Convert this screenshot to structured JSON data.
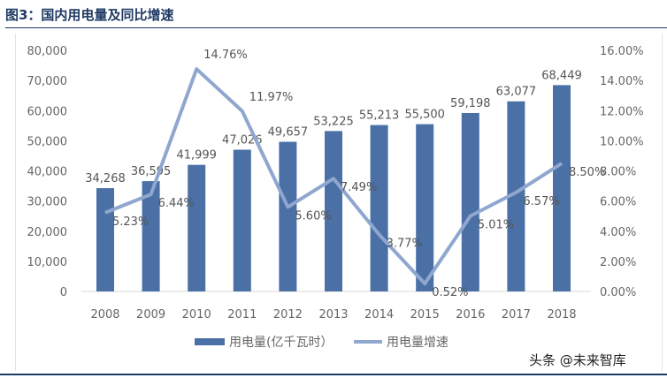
{
  "title": "图3：国内用电量及同比增速",
  "watermark": "头条 @未来智库",
  "chart_data": {
    "type": "bar+line",
    "title": "图3：国内用电量及同比增速",
    "categories": [
      "2008",
      "2009",
      "2010",
      "2011",
      "2012",
      "2013",
      "2014",
      "2015",
      "2016",
      "2017",
      "2018"
    ],
    "series": [
      {
        "name": "用电量(亿千瓦时）",
        "type": "bar",
        "axis": "left",
        "color": "#4a70a6",
        "values": [
          34268,
          36595,
          41999,
          47026,
          49657,
          53225,
          55213,
          55500,
          59198,
          63077,
          68449
        ],
        "labels": [
          "34,268",
          "36,595",
          "41,999",
          "47,026",
          "49,657",
          "53,225",
          "55,213",
          "55,500",
          "59,198",
          "63,077",
          "68,449"
        ]
      },
      {
        "name": "用电量增速",
        "type": "line",
        "axis": "right",
        "color": "#8fa7cf",
        "values": [
          5.23,
          6.44,
          14.76,
          11.97,
          5.6,
          7.49,
          3.77,
          0.52,
          5.01,
          6.57,
          8.5
        ],
        "labels": [
          "5.23%",
          "6.44%",
          "14.76%",
          "11.97%",
          "5.60%",
          "7.49%",
          "3.77%",
          "0.52%",
          "5.01%",
          "6.57%",
          "8.50%"
        ]
      }
    ],
    "left_axis": {
      "ylim": [
        0,
        80000
      ],
      "ticks": [
        "0",
        "10,000",
        "20,000",
        "30,000",
        "40,000",
        "50,000",
        "60,000",
        "70,000",
        "80,000"
      ]
    },
    "right_axis": {
      "ylim": [
        0,
        16
      ],
      "ticks": [
        "0.00%",
        "2.00%",
        "4.00%",
        "6.00%",
        "8.00%",
        "10.00%",
        "12.00%",
        "14.00%",
        "16.00%"
      ]
    },
    "grid": false,
    "legend": "bottom"
  }
}
